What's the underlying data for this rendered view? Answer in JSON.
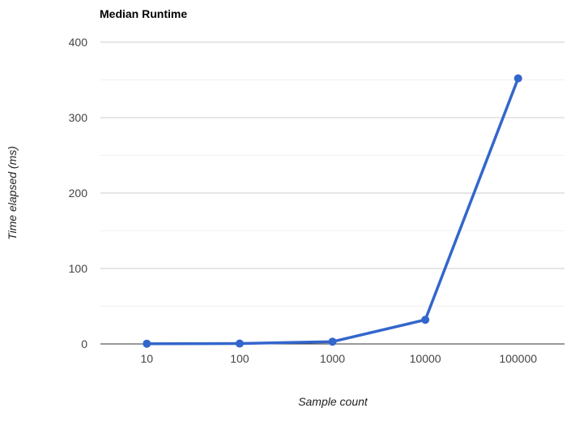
{
  "chart_data": {
    "type": "line",
    "title": "Median Runtime",
    "xlabel": "Sample count",
    "ylabel": "Time elapsed (ms)",
    "categories": [
      "10",
      "100",
      "1000",
      "10000",
      "100000"
    ],
    "series": [
      {
        "values": [
          0.3,
          0.5,
          3,
          32,
          352
        ],
        "color": "#3366cc"
      }
    ],
    "ylim": [
      0,
      400
    ],
    "y_ticks": [
      "0",
      "100",
      "200",
      "300",
      "400"
    ],
    "grid": true,
    "legend": "none"
  }
}
